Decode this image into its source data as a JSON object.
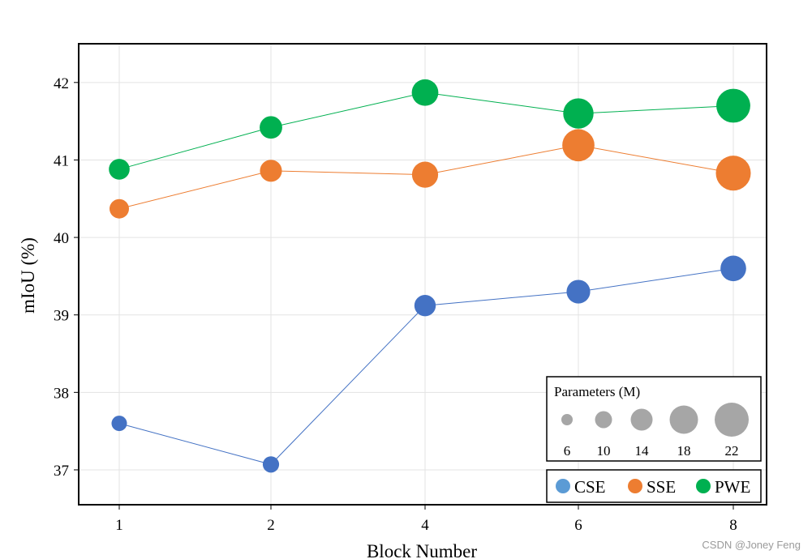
{
  "chart_data": {
    "type": "scatter",
    "xlabel": "Block Number",
    "ylabel": "mIoU (%)",
    "categories": [
      "1",
      "2",
      "4",
      "6",
      "8"
    ],
    "yticks": [
      37,
      38,
      39,
      40,
      41,
      42
    ],
    "ylim": [
      36.55,
      42.5
    ],
    "grid": true,
    "series": [
      {
        "name": "CSE",
        "color": "#4472C4",
        "legend_color": "#5B9BD5",
        "values": [
          37.6,
          37.07,
          39.12,
          39.3,
          39.6
        ],
        "params": [
          2.5,
          3.0,
          6.5,
          8.5,
          10.5
        ]
      },
      {
        "name": "SSE",
        "color": "#ED7D31",
        "legend_color": "#ED7D31",
        "values": [
          40.37,
          40.86,
          40.81,
          41.19,
          40.83
        ],
        "params": [
          5.0,
          7.0,
          11.0,
          18.5,
          22.5
        ]
      },
      {
        "name": "PWE",
        "color": "#00B050",
        "legend_color": "#00B050",
        "values": [
          40.88,
          41.42,
          41.87,
          41.6,
          41.7
        ],
        "params": [
          6.0,
          7.5,
          11.5,
          16.0,
          21.0
        ]
      }
    ],
    "size_legend": {
      "title": "Parameters (M)",
      "values": [
        6,
        10,
        14,
        18,
        22
      ],
      "color": "#A6A6A6"
    },
    "legend_placement": "bottom-right"
  },
  "watermark": "CSDN @Joney Feng"
}
